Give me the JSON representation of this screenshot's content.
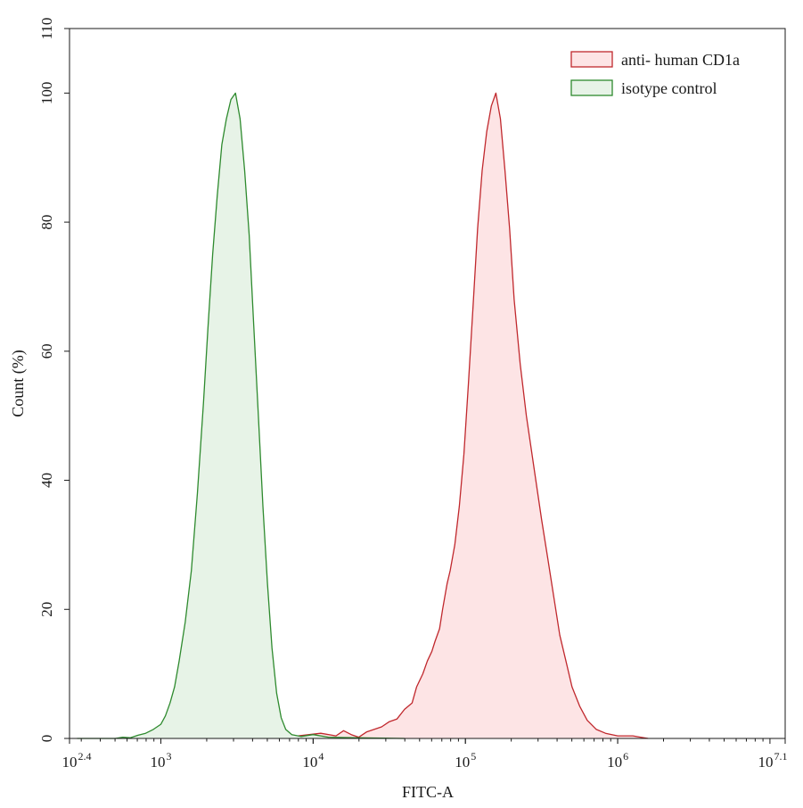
{
  "chart_data": {
    "type": "area",
    "xlabel": "FITC-A",
    "ylabel": "Count  (%)",
    "x_scale": "log10",
    "xlim_exponent": [
      2.4,
      7.1
    ],
    "ylim": [
      0,
      110
    ],
    "x_ticks": [
      {
        "base": "10",
        "exp": "2.4",
        "value_exp": 2.4
      },
      {
        "base": "10",
        "exp": "3",
        "value_exp": 3
      },
      {
        "base": "10",
        "exp": "4",
        "value_exp": 4
      },
      {
        "base": "10",
        "exp": "5",
        "value_exp": 5
      },
      {
        "base": "10",
        "exp": "6",
        "value_exp": 6
      },
      {
        "base": "10",
        "exp": "7.1",
        "value_exp": 7.1
      }
    ],
    "y_ticks": [
      "0",
      "20",
      "40",
      "60",
      "80",
      "100",
      "110"
    ],
    "grid": false,
    "legend_position": "top-right",
    "series": [
      {
        "name": "anti- human CD1a",
        "stroke": "#c0282d",
        "fill": "#fde4e5",
        "points_log10x": [
          [
            3.6,
            0
          ],
          [
            3.9,
            0.4
          ],
          [
            4.05,
            0.8
          ],
          [
            4.15,
            0.4
          ],
          [
            4.2,
            1.2
          ],
          [
            4.25,
            0.6
          ],
          [
            4.3,
            0.2
          ],
          [
            4.35,
            1
          ],
          [
            4.45,
            1.8
          ],
          [
            4.5,
            2.6
          ],
          [
            4.55,
            3
          ],
          [
            4.6,
            4.5
          ],
          [
            4.65,
            5.5
          ],
          [
            4.68,
            8
          ],
          [
            4.72,
            10
          ],
          [
            4.75,
            12
          ],
          [
            4.78,
            13.5
          ],
          [
            4.8,
            15
          ],
          [
            4.83,
            17
          ],
          [
            4.85,
            20
          ],
          [
            4.88,
            24
          ],
          [
            4.9,
            26
          ],
          [
            4.93,
            30
          ],
          [
            4.96,
            36
          ],
          [
            4.99,
            44
          ],
          [
            5.02,
            55
          ],
          [
            5.05,
            67
          ],
          [
            5.08,
            79
          ],
          [
            5.11,
            88
          ],
          [
            5.14,
            94
          ],
          [
            5.17,
            98
          ],
          [
            5.2,
            100
          ],
          [
            5.23,
            96
          ],
          [
            5.26,
            88
          ],
          [
            5.29,
            79
          ],
          [
            5.32,
            68
          ],
          [
            5.36,
            58
          ],
          [
            5.4,
            50
          ],
          [
            5.45,
            42
          ],
          [
            5.5,
            34
          ],
          [
            5.54,
            28
          ],
          [
            5.58,
            22
          ],
          [
            5.62,
            16
          ],
          [
            5.66,
            12
          ],
          [
            5.7,
            8
          ],
          [
            5.75,
            5
          ],
          [
            5.8,
            2.8
          ],
          [
            5.86,
            1.4
          ],
          [
            5.92,
            0.8
          ],
          [
            6.0,
            0.4
          ],
          [
            6.1,
            0.4
          ],
          [
            6.15,
            0.2
          ],
          [
            6.2,
            0
          ]
        ]
      },
      {
        "name": "isotype control",
        "stroke": "#2e8a2e",
        "fill": "#e7f3e7",
        "points_log10x": [
          [
            2.45,
            0
          ],
          [
            2.7,
            0
          ],
          [
            2.75,
            0.2
          ],
          [
            2.8,
            0.1
          ],
          [
            2.85,
            0.5
          ],
          [
            2.9,
            0.8
          ],
          [
            2.95,
            1.4
          ],
          [
            3.0,
            2.2
          ],
          [
            3.03,
            3.5
          ],
          [
            3.06,
            5.5
          ],
          [
            3.09,
            8
          ],
          [
            3.12,
            12
          ],
          [
            3.16,
            18
          ],
          [
            3.2,
            26
          ],
          [
            3.24,
            38
          ],
          [
            3.28,
            52
          ],
          [
            3.31,
            64
          ],
          [
            3.34,
            75
          ],
          [
            3.37,
            84
          ],
          [
            3.4,
            92
          ],
          [
            3.43,
            96
          ],
          [
            3.46,
            99
          ],
          [
            3.49,
            100
          ],
          [
            3.52,
            96
          ],
          [
            3.55,
            88
          ],
          [
            3.58,
            78
          ],
          [
            3.61,
            64
          ],
          [
            3.64,
            50
          ],
          [
            3.67,
            36
          ],
          [
            3.7,
            24
          ],
          [
            3.73,
            14
          ],
          [
            3.76,
            7
          ],
          [
            3.79,
            3.2
          ],
          [
            3.82,
            1.4
          ],
          [
            3.86,
            0.6
          ],
          [
            3.92,
            0.3
          ],
          [
            4.0,
            0.6
          ],
          [
            4.1,
            0.2
          ],
          [
            4.3,
            0.1
          ],
          [
            4.6,
            0
          ]
        ]
      }
    ]
  }
}
